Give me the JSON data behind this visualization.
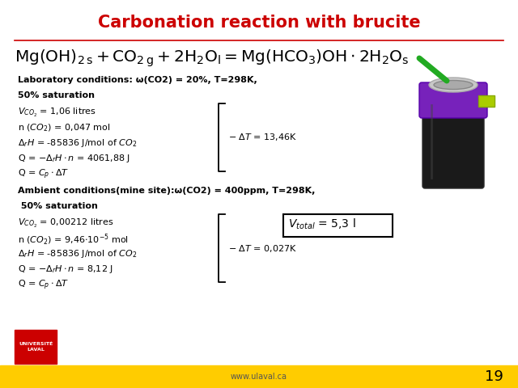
{
  "title": "Carbonation reaction with brucite",
  "title_color": "#cc0000",
  "bg_color": "#ffffff",
  "slide_number": "19",
  "website": "www.ulaval.ca",
  "footer_bar_color": "#ffcc00",
  "separator_color": "#cc0000"
}
